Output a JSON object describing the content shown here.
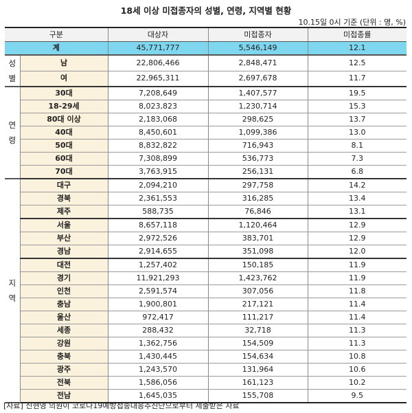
{
  "title": "18세 이상 미접종자의 성별, 연령, 지역별 현황",
  "subtitle": "10.15일 0시 기준 (단위 : 명, %)",
  "headers": [
    "구분",
    "대상자",
    "미접종자",
    "미접종률"
  ],
  "total": {
    "label": "계",
    "target": "45,771,777",
    "unvaccinated": "5,546,149",
    "rate": "12.1"
  },
  "groups": [
    {
      "name": "성별",
      "rows": [
        {
          "label": "남",
          "target": "22,806,466",
          "unvaccinated": "2,848,471",
          "rate": "12.5"
        },
        {
          "label": "여",
          "target": "22,965,311",
          "unvaccinated": "2,697,678",
          "rate": "11.7"
        }
      ]
    },
    {
      "name": "연령",
      "rows": [
        {
          "label": "30대",
          "target": "7,208,649",
          "unvaccinated": "1,407,577",
          "rate": "19.5"
        },
        {
          "label": "18-29세",
          "target": "8,023,823",
          "unvaccinated": "1,230,714",
          "rate": "15.3"
        },
        {
          "label": "80대 이상",
          "target": "2,183,068",
          "unvaccinated": "298,625",
          "rate": "13.7"
        },
        {
          "label": "40대",
          "target": "8,450,601",
          "unvaccinated": "1,099,386",
          "rate": "13.0"
        },
        {
          "label": "50대",
          "target": "8,832,822",
          "unvaccinated": "716,943",
          "rate": "8.1"
        },
        {
          "label": "60대",
          "target": "7,308,899",
          "unvaccinated": "536,773",
          "rate": "7.3"
        },
        {
          "label": "70대",
          "target": "3,763,915",
          "unvaccinated": "256,131",
          "rate": "6.8"
        }
      ]
    },
    {
      "name": "지역",
      "rows": [
        {
          "label": "대구",
          "target": "2,094,210",
          "unvaccinated": "297,758",
          "rate": "14.2"
        },
        {
          "label": "경북",
          "target": "2,361,553",
          "unvaccinated": "316,285",
          "rate": "13.4"
        },
        {
          "label": "제주",
          "target": "588,735",
          "unvaccinated": "76,846",
          "rate": "13.1"
        },
        {
          "label": "서울",
          "target": "8,657,118",
          "unvaccinated": "1,120,464",
          "rate": "12.9"
        },
        {
          "label": "부산",
          "target": "2,972,526",
          "unvaccinated": "383,701",
          "rate": "12.9"
        },
        {
          "label": "경남",
          "target": "2,914,655",
          "unvaccinated": "351,098",
          "rate": "12.0"
        },
        {
          "label": "대전",
          "target": "1,257,402",
          "unvaccinated": "150,185",
          "rate": "11.9"
        },
        {
          "label": "경기",
          "target": "11,921,293",
          "unvaccinated": "1,423,762",
          "rate": "11.9"
        },
        {
          "label": "인천",
          "target": "2,591,574",
          "unvaccinated": "307,056",
          "rate": "11.8"
        },
        {
          "label": "충남",
          "target": "1,900,801",
          "unvaccinated": "217,121",
          "rate": "11.4"
        },
        {
          "label": "울산",
          "target": "972,417",
          "unvaccinated": "111,217",
          "rate": "11.4"
        },
        {
          "label": "세종",
          "target": "288,432",
          "unvaccinated": "32,718",
          "rate": "11.3"
        },
        {
          "label": "강원",
          "target": "1,362,756",
          "unvaccinated": "154,509",
          "rate": "11.3"
        },
        {
          "label": "충북",
          "target": "1,430,445",
          "unvaccinated": "154,634",
          "rate": "10.8"
        },
        {
          "label": "광주",
          "target": "1,243,570",
          "unvaccinated": "131,964",
          "rate": "10.6"
        },
        {
          "label": "전북",
          "target": "1,586,056",
          "unvaccinated": "161,123",
          "rate": "10.2"
        },
        {
          "label": "전남",
          "target": "1,645,035",
          "unvaccinated": "155,708",
          "rate": "9.5"
        }
      ]
    }
  ],
  "footer": "[자료] 신현영 의원이 코로나19예방접종대응추진단으로부터 제출받은 자료"
}
